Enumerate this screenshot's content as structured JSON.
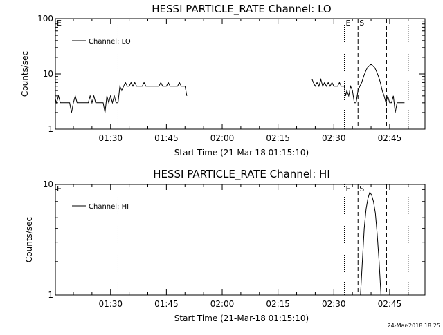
{
  "chart_data": [
    {
      "type": "line",
      "title": "HESSI PARTICLE_RATE Channel: LO",
      "xlabel": "Start Time (21-Mar-18 01:15:10)",
      "ylabel": "Counts/sec",
      "yscale": "log",
      "ylim": [
        1,
        100
      ],
      "xlim": [
        "01:15:10",
        "02:54:30"
      ],
      "x_ticks": [
        "01:30",
        "01:45",
        "02:00",
        "02:15",
        "02:30",
        "02:45"
      ],
      "y_ticks": [
        "1",
        "10",
        "100"
      ],
      "legend": {
        "position": "top-left",
        "entries": [
          "Channel: LO"
        ]
      },
      "event_markers": [
        {
          "label": "E",
          "time": "01:15:10",
          "style": "none"
        },
        {
          "label": "",
          "time": "01:32:00",
          "style": "dotted"
        },
        {
          "label": "E",
          "time": "02:32:50",
          "style": "dotted"
        },
        {
          "label": "S",
          "time": "02:36:30",
          "style": "dashed"
        },
        {
          "label": "",
          "time": "02:44:10",
          "style": "dashed"
        },
        {
          "label": "",
          "time": "02:50:00",
          "style": "dotted"
        }
      ],
      "series": [
        {
          "name": "Channel: LO",
          "segments": [
            [
              [
                "01:15:10",
                3.5
              ],
              [
                "01:15:30",
                3.0
              ],
              [
                "01:16:00",
                4.0
              ],
              [
                "01:16:30",
                3.0
              ],
              [
                "01:17:00",
                3.0
              ],
              [
                "01:18:00",
                3.0
              ],
              [
                "01:19:00",
                3.0
              ],
              [
                "01:19:30",
                2.0
              ],
              [
                "01:20:00",
                3.0
              ],
              [
                "01:20:30",
                4.0
              ],
              [
                "01:21:00",
                3.0
              ],
              [
                "01:22:00",
                3.0
              ],
              [
                "01:23:00",
                3.0
              ],
              [
                "01:24:00",
                3.0
              ],
              [
                "01:24:30",
                4.0
              ],
              [
                "01:25:00",
                3.0
              ],
              [
                "01:25:30",
                4.0
              ],
              [
                "01:26:00",
                3.0
              ],
              [
                "01:27:00",
                3.0
              ],
              [
                "01:28:00",
                3.0
              ],
              [
                "01:28:30",
                2.0
              ],
              [
                "01:29:00",
                4.0
              ],
              [
                "01:29:30",
                3.0
              ],
              [
                "01:30:00",
                4.0
              ],
              [
                "01:30:30",
                3.0
              ],
              [
                "01:31:00",
                4.0
              ],
              [
                "01:31:30",
                3.0
              ],
              [
                "01:32:00",
                3.0
              ],
              [
                "01:32:30",
                6.0
              ],
              [
                "01:33:00",
                5.0
              ],
              [
                "01:33:30",
                6.0
              ],
              [
                "01:34:00",
                7.0
              ],
              [
                "01:34:30",
                6.0
              ],
              [
                "01:35:00",
                6.0
              ],
              [
                "01:35:30",
                7.0
              ],
              [
                "01:36:00",
                6.0
              ],
              [
                "01:36:30",
                7.0
              ],
              [
                "01:37:00",
                6.0
              ],
              [
                "01:38:00",
                6.0
              ],
              [
                "01:38:30",
                6.0
              ],
              [
                "01:39:00",
                7.0
              ],
              [
                "01:39:30",
                6.0
              ],
              [
                "01:40:00",
                6.0
              ],
              [
                "01:41:00",
                6.0
              ],
              [
                "01:42:00",
                6.0
              ],
              [
                "01:43:00",
                6.0
              ],
              [
                "01:43:30",
                7.0
              ],
              [
                "01:44:00",
                6.0
              ],
              [
                "01:45:00",
                6.0
              ],
              [
                "01:45:30",
                7.0
              ],
              [
                "01:46:00",
                6.0
              ],
              [
                "01:47:00",
                6.0
              ],
              [
                "01:48:00",
                6.0
              ],
              [
                "01:48:30",
                7.0
              ],
              [
                "01:49:00",
                6.0
              ],
              [
                "01:50:00",
                6.0
              ],
              [
                "01:50:30",
                4.0
              ]
            ],
            [
              [
                "02:24:10",
                8.0
              ],
              [
                "02:24:30",
                7.0
              ],
              [
                "02:25:00",
                6.0
              ],
              [
                "02:25:30",
                7.0
              ],
              [
                "02:26:00",
                6.0
              ],
              [
                "02:26:30",
                8.0
              ],
              [
                "02:27:00",
                6.0
              ],
              [
                "02:27:30",
                7.0
              ],
              [
                "02:28:00",
                6.0
              ],
              [
                "02:28:30",
                7.0
              ],
              [
                "02:29:00",
                6.0
              ],
              [
                "02:29:30",
                7.0
              ],
              [
                "02:30:00",
                6.0
              ],
              [
                "02:31:00",
                6.0
              ],
              [
                "02:31:30",
                7.0
              ],
              [
                "02:32:00",
                6.0
              ],
              [
                "02:32:50",
                6.0
              ],
              [
                "02:33:10",
                4.0
              ],
              [
                "02:33:30",
                5.0
              ],
              [
                "02:34:00",
                4.0
              ],
              [
                "02:34:30",
                6.0
              ],
              [
                "02:35:00",
                5.0
              ],
              [
                "02:35:30",
                3.0
              ],
              [
                "02:36:00",
                3.0
              ],
              [
                "02:36:30",
                5.0
              ],
              [
                "02:37:00",
                6.0
              ],
              [
                "02:37:30",
                7.0
              ],
              [
                "02:38:00",
                9.0
              ],
              [
                "02:38:30",
                11.0
              ],
              [
                "02:39:00",
                13.0
              ],
              [
                "02:39:30",
                14.0
              ],
              [
                "02:40:00",
                15.0
              ],
              [
                "02:40:30",
                14.0
              ],
              [
                "02:41:00",
                13.0
              ],
              [
                "02:41:30",
                11.0
              ],
              [
                "02:42:00",
                9.0
              ],
              [
                "02:42:30",
                7.0
              ],
              [
                "02:43:00",
                5.0
              ],
              [
                "02:43:30",
                4.0
              ],
              [
                "02:44:00",
                3.0
              ],
              [
                "02:44:30",
                4.0
              ],
              [
                "02:45:00",
                3.0
              ],
              [
                "02:45:30",
                3.0
              ],
              [
                "02:46:00",
                4.0
              ],
              [
                "02:46:30",
                2.0
              ],
              [
                "02:47:00",
                3.0
              ],
              [
                "02:47:30",
                3.0
              ],
              [
                "02:48:00",
                3.0
              ],
              [
                "02:48:30",
                3.0
              ],
              [
                "02:49:00",
                3.0
              ]
            ]
          ]
        }
      ]
    },
    {
      "type": "line",
      "title": "HESSI PARTICLE_RATE Channel: HI",
      "xlabel": "Start Time (21-Mar-18 01:15:10)",
      "ylabel": "Counts/sec",
      "yscale": "log",
      "ylim": [
        1,
        10
      ],
      "xlim": [
        "01:15:10",
        "02:54:30"
      ],
      "x_ticks": [
        "01:30",
        "01:45",
        "02:00",
        "02:15",
        "02:30",
        "02:45"
      ],
      "y_ticks": [
        "1",
        "10"
      ],
      "legend": {
        "position": "top-left",
        "entries": [
          "Channel: HI"
        ]
      },
      "event_markers": [
        {
          "label": "E",
          "time": "01:15:10",
          "style": "none"
        },
        {
          "label": "",
          "time": "01:32:00",
          "style": "dotted"
        },
        {
          "label": "E",
          "time": "02:32:50",
          "style": "dotted"
        },
        {
          "label": "S",
          "time": "02:36:30",
          "style": "dashed"
        },
        {
          "label": "",
          "time": "02:44:10",
          "style": "dashed"
        },
        {
          "label": "",
          "time": "02:50:00",
          "style": "dotted"
        }
      ],
      "series": [
        {
          "name": "Channel: HI",
          "segments": [
            [
              [
                "02:37:10",
                1.0
              ],
              [
                "02:37:40",
                2.0
              ],
              [
                "02:38:10",
                4.0
              ],
              [
                "02:38:40",
                6.0
              ],
              [
                "02:39:10",
                7.5
              ],
              [
                "02:39:40",
                8.5
              ],
              [
                "02:40:10",
                8.0
              ],
              [
                "02:40:40",
                7.0
              ],
              [
                "02:41:10",
                5.5
              ],
              [
                "02:41:40",
                3.5
              ],
              [
                "02:42:10",
                2.0
              ],
              [
                "02:42:40",
                1.0
              ]
            ]
          ]
        }
      ]
    }
  ],
  "footer": {
    "timestamp": "24-Mar-2018 18:25"
  }
}
